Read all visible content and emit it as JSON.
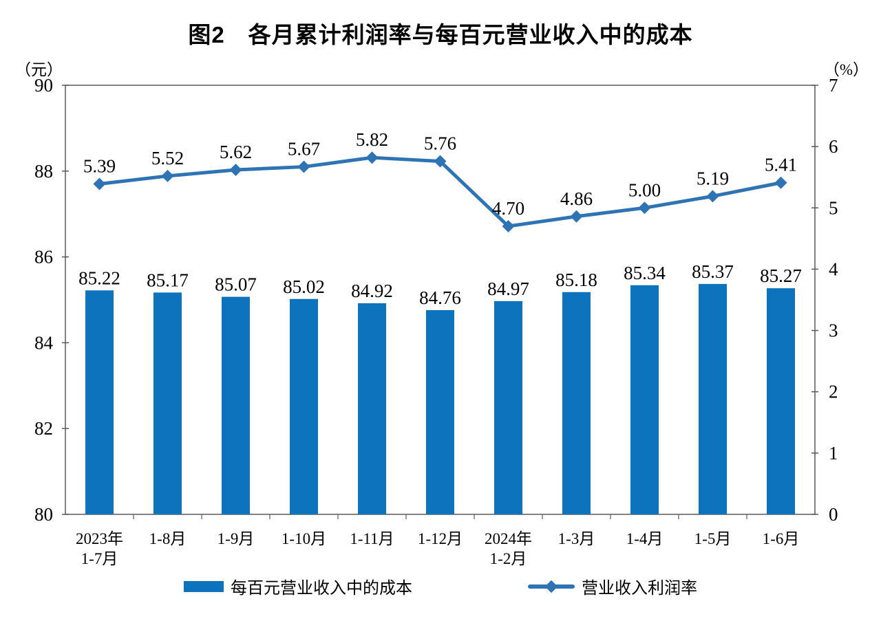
{
  "title": "图2　各月累计利润率与每百元营业收入中的成本",
  "unit_left": "（元）",
  "unit_right": "（%）",
  "legend": [
    {
      "label": "每百元营业收入中的成本",
      "swatch": "bar-swatch"
    },
    {
      "label": "营业收入利润率",
      "swatch": "line-diamond-swatch"
    }
  ],
  "colors": {
    "bar": "#0d73bd",
    "line": "#2e74b5",
    "axis": "#595959",
    "text": "#000000",
    "background": "#ffffff"
  },
  "chart_data": {
    "type": "bar",
    "subtype": "bar+line dual-axis",
    "title": "图2　各月累计利润率与每百元营业收入中的成本",
    "categories": [
      "2023年\n1-7月",
      "1-8月",
      "1-9月",
      "1-10月",
      "1-11月",
      "1-12月",
      "2024年\n1-2月",
      "1-3月",
      "1-4月",
      "1-5月",
      "1-6月"
    ],
    "series": [
      {
        "name": "每百元营业收入中的成本",
        "type": "bar",
        "axis": "left",
        "unit": "元",
        "values": [
          85.22,
          85.17,
          85.07,
          85.02,
          84.92,
          84.76,
          84.97,
          85.18,
          85.34,
          85.37,
          85.27
        ]
      },
      {
        "name": "营业收入利润率",
        "type": "line",
        "axis": "right",
        "unit": "%",
        "marker": "diamond",
        "values": [
          5.39,
          5.52,
          5.62,
          5.67,
          5.82,
          5.76,
          4.7,
          4.86,
          5.0,
          5.19,
          5.41
        ]
      }
    ],
    "y_left": {
      "label": "（元）",
      "min": 80,
      "max": 90,
      "ticks": [
        90,
        88,
        86,
        84,
        82,
        80
      ]
    },
    "y_right": {
      "label": "（%）",
      "min": 0,
      "max": 7,
      "ticks": [
        7,
        6,
        5,
        4,
        3,
        2,
        1,
        0
      ]
    },
    "grid": false,
    "legend_position": "bottom",
    "data_labels": true
  }
}
